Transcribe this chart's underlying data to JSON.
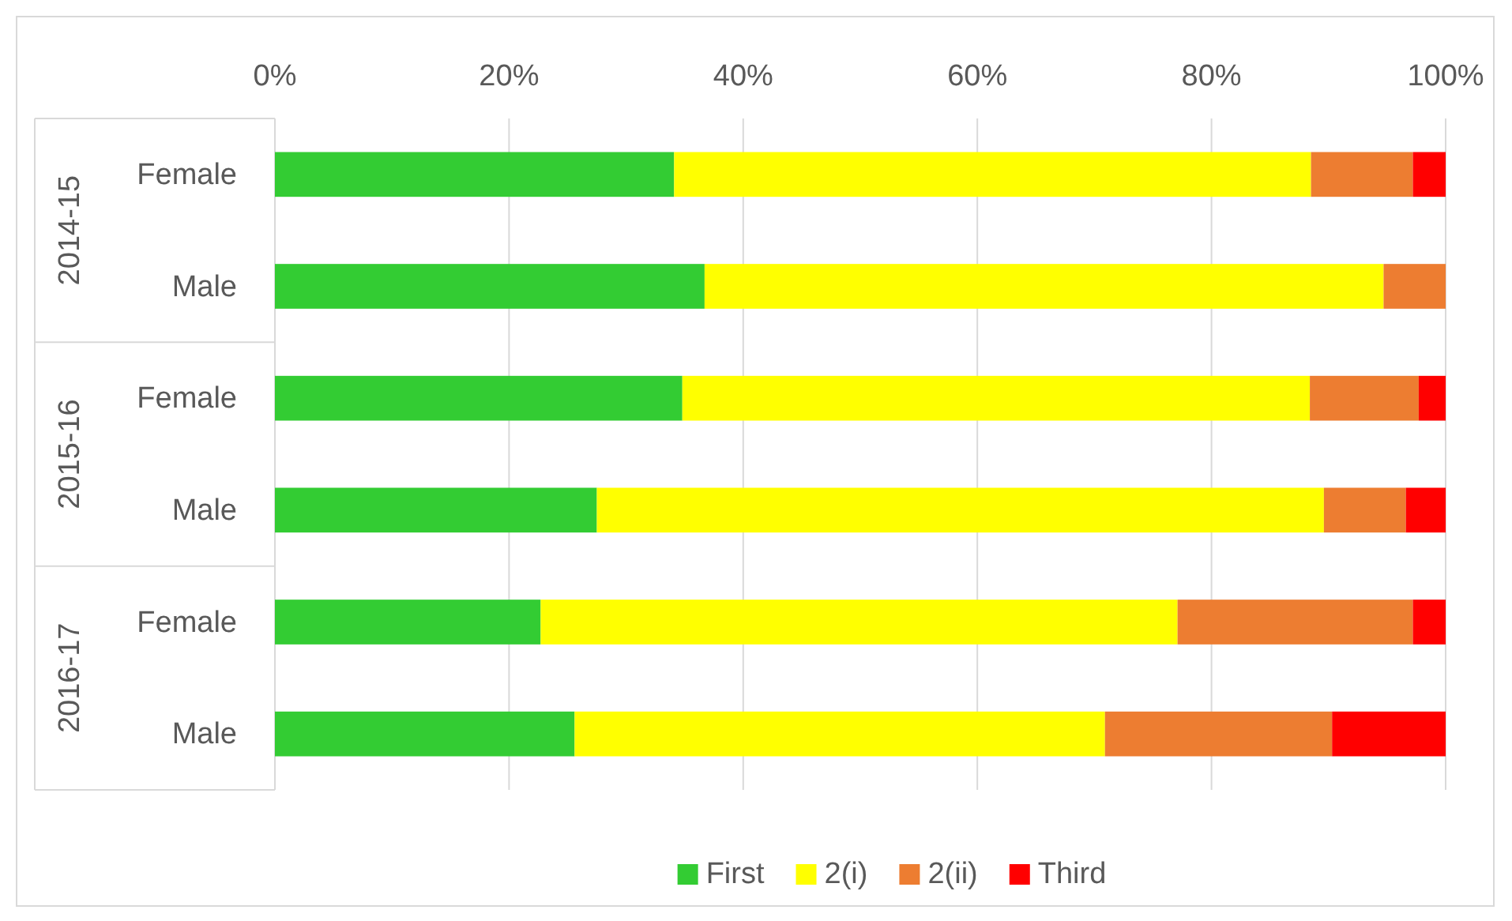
{
  "chart_data": {
    "type": "bar",
    "orientation": "horizontal",
    "stacked": true,
    "categories": [
      "Female",
      "Male",
      "Female",
      "Male",
      "Female",
      "Male"
    ],
    "annotations": [
      "2014-15",
      "2015-16",
      "2016-17"
    ],
    "series": [
      {
        "name": "First",
        "color": "#33cc33",
        "values": [
          34.1,
          36.7,
          34.8,
          27.5,
          22.7,
          25.6
        ]
      },
      {
        "name": "2(i)",
        "color": "#ffff00",
        "values": [
          54.4,
          58.0,
          53.6,
          62.1,
          54.4,
          45.3
        ]
      },
      {
        "name": "2(ii)",
        "color": "#ed7d31",
        "values": [
          8.7,
          5.3,
          9.3,
          7.0,
          20.1,
          19.4
        ]
      },
      {
        "name": "Third",
        "color": "#ff0000",
        "values": [
          2.8,
          0,
          2.3,
          3.4,
          2.8,
          9.7
        ]
      }
    ],
    "xlim": [
      0,
      100
    ],
    "xticks": [
      {
        "value": 0,
        "label": "0%"
      },
      {
        "value": 20,
        "label": "20%"
      },
      {
        "value": 40,
        "label": "40%"
      },
      {
        "value": 60,
        "label": "60%"
      },
      {
        "value": 80,
        "label": "80%"
      },
      {
        "value": 100,
        "label": "100%"
      }
    ],
    "grid": "x",
    "legend": "bottom"
  }
}
